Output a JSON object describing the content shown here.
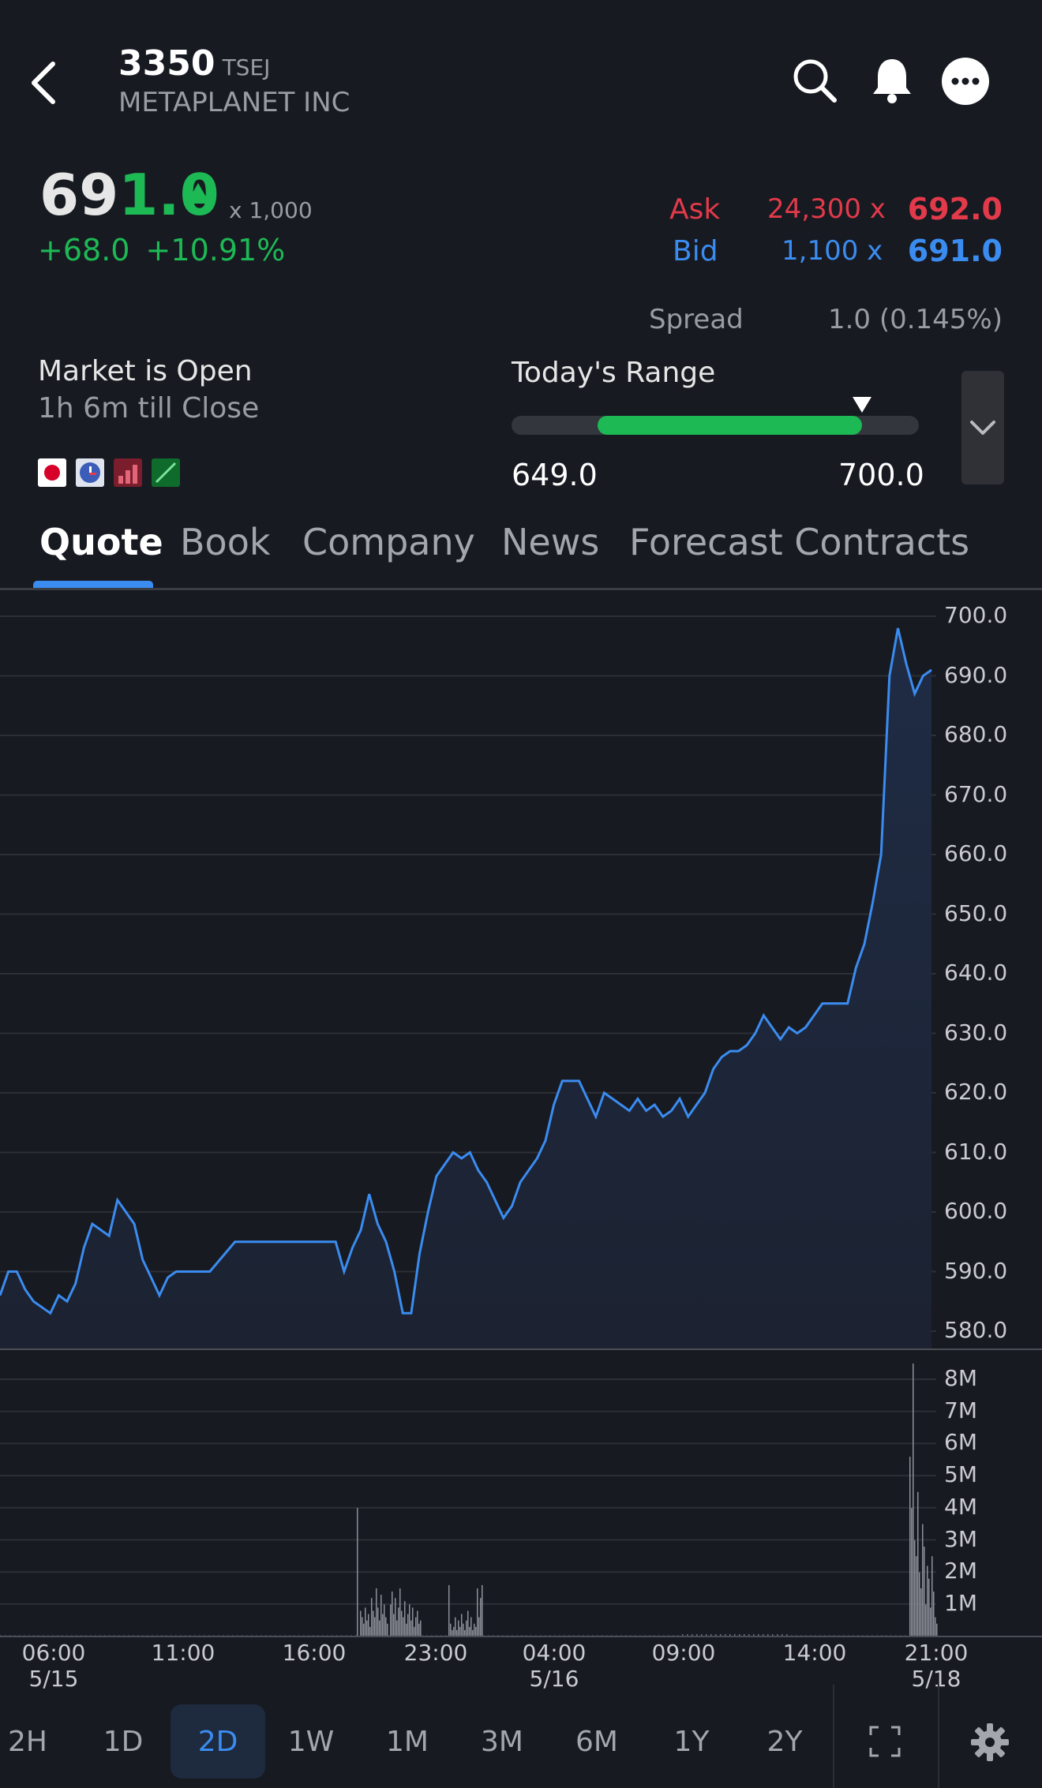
{
  "header": {
    "symbol": "3350",
    "exchange": "TSEJ",
    "company": "METAPLANET INC"
  },
  "quote": {
    "price_prefix": "69",
    "price_suffix": "1.0",
    "multiplier": "x 1,000",
    "change": "+68.0",
    "change_pct": "+10.91%",
    "ask_label": "Ask",
    "ask_size": "24,300",
    "ask_x": "x",
    "ask_price": "692.0",
    "bid_label": "Bid",
    "bid_size": "1,100",
    "bid_x": "x",
    "bid_price": "691.0",
    "spread_label": "Spread",
    "spread_value": "1.0 (0.145%)",
    "market_status": "Market is Open",
    "time_to_close": "1h 6m till Close",
    "range_label": "Today's Range",
    "range_low": "649.0",
    "range_high": "700.0",
    "range_fill": 0.65,
    "range_marker": 0.86
  },
  "tabs": [
    "Quote",
    "Book",
    "Company",
    "News",
    "Forecast Contracts"
  ],
  "chart_data": {
    "type": "area",
    "y_ticks": [
      "700.0",
      "690.0",
      "680.0",
      "670.0",
      "660.0",
      "650.0",
      "640.0",
      "630.0",
      "620.0",
      "610.0",
      "600.0",
      "590.0",
      "580.0"
    ],
    "volume_ticks": [
      "8M",
      "7M",
      "6M",
      "5M",
      "4M",
      "3M",
      "2M",
      "1M"
    ],
    "x_ticks": [
      {
        "time": "06:00",
        "date": "5/15"
      },
      {
        "time": "11:00",
        "date": ""
      },
      {
        "time": "16:00",
        "date": ""
      },
      {
        "time": "23:00",
        "date": ""
      },
      {
        "time": "04:00",
        "date": "5/16"
      },
      {
        "time": "09:00",
        "date": ""
      },
      {
        "time": "14:00",
        "date": ""
      },
      {
        "time": "21:00",
        "date": "5/18"
      }
    ],
    "ylim": [
      580,
      700
    ],
    "price": [
      [
        0,
        586
      ],
      [
        1,
        590
      ],
      [
        2,
        590
      ],
      [
        3,
        587
      ],
      [
        4,
        585
      ],
      [
        5,
        584
      ],
      [
        6,
        583
      ],
      [
        7,
        586
      ],
      [
        8,
        585
      ],
      [
        9,
        588
      ],
      [
        10,
        594
      ],
      [
        11,
        598
      ],
      [
        12,
        597
      ],
      [
        13,
        596
      ],
      [
        14,
        602
      ],
      [
        15,
        600
      ],
      [
        16,
        598
      ],
      [
        17,
        592
      ],
      [
        18,
        589
      ],
      [
        19,
        586
      ],
      [
        20,
        589
      ],
      [
        21,
        590
      ],
      [
        22,
        590
      ],
      [
        25,
        590
      ],
      [
        28,
        595
      ],
      [
        32,
        595
      ],
      [
        37,
        595
      ],
      [
        40,
        595
      ],
      [
        41,
        590
      ],
      [
        42,
        594
      ],
      [
        43,
        597
      ],
      [
        44,
        603
      ],
      [
        45,
        598
      ],
      [
        46,
        595
      ],
      [
        47,
        590
      ],
      [
        48,
        583
      ],
      [
        49,
        583
      ],
      [
        50,
        593
      ],
      [
        51,
        600
      ],
      [
        52,
        606
      ],
      [
        53,
        608
      ],
      [
        54,
        610
      ],
      [
        55,
        609
      ],
      [
        56,
        610
      ],
      [
        57,
        607
      ],
      [
        58,
        605
      ],
      [
        59,
        602
      ],
      [
        60,
        599
      ],
      [
        61,
        601
      ],
      [
        62,
        605
      ],
      [
        63,
        607
      ],
      [
        64,
        609
      ],
      [
        65,
        612
      ],
      [
        66,
        618
      ],
      [
        67,
        622
      ],
      [
        68,
        622
      ],
      [
        69,
        622
      ],
      [
        70,
        619
      ],
      [
        71,
        616
      ],
      [
        72,
        620
      ],
      [
        73,
        619
      ],
      [
        74,
        618
      ],
      [
        75,
        617
      ],
      [
        76,
        619
      ],
      [
        77,
        617
      ],
      [
        78,
        618
      ],
      [
        79,
        616
      ],
      [
        80,
        617
      ],
      [
        81,
        619
      ],
      [
        82,
        616
      ],
      [
        83,
        618
      ],
      [
        84,
        620
      ],
      [
        85,
        624
      ],
      [
        86,
        626
      ],
      [
        87,
        627
      ],
      [
        88,
        627
      ],
      [
        89,
        628
      ],
      [
        90,
        630
      ],
      [
        91,
        633
      ],
      [
        92,
        631
      ],
      [
        93,
        629
      ],
      [
        94,
        631
      ],
      [
        95,
        630
      ],
      [
        96,
        631
      ],
      [
        97,
        633
      ],
      [
        98,
        635
      ],
      [
        99,
        635
      ],
      [
        100,
        635
      ],
      [
        101,
        635
      ],
      [
        102,
        641
      ],
      [
        103,
        645
      ],
      [
        104,
        652
      ],
      [
        105,
        660
      ],
      [
        106,
        690
      ],
      [
        107,
        698
      ],
      [
        108,
        692
      ],
      [
        109,
        687
      ],
      [
        110,
        690
      ],
      [
        111,
        691
      ]
    ],
    "volume_note": "volume bars"
  },
  "range_buttons": [
    "2H",
    "1D",
    "2D",
    "1W",
    "1M",
    "3M",
    "6M",
    "1Y",
    "2Y"
  ],
  "selected_range": "2D",
  "colors": {
    "background": "#171a21",
    "up": "#1db954",
    "down": "#e23a4a",
    "accent": "#3b8cf0"
  }
}
